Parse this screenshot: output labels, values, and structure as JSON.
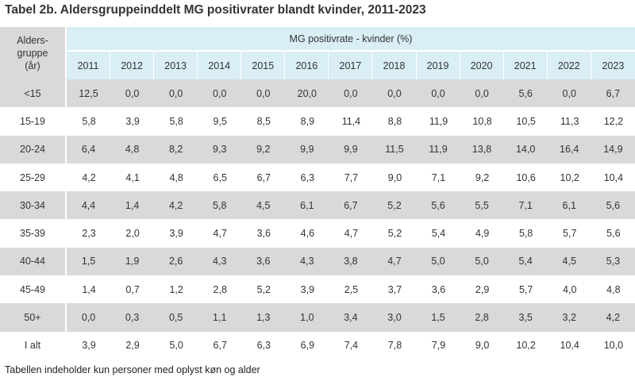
{
  "title": "Tabel 2b. Aldersgruppeinddelt MG positivrater blandt kvinder, 2011-2023",
  "header": {
    "row_header_lines": [
      "Alders-",
      "gruppe",
      "(år)"
    ],
    "span_label": "MG positivrate - kvinder (%)",
    "years": [
      "2011",
      "2012",
      "2013",
      "2014",
      "2015",
      "2016",
      "2017",
      "2018",
      "2019",
      "2020",
      "2021",
      "2022",
      "2023"
    ]
  },
  "rows": [
    {
      "label": "<15",
      "values": [
        "12,5",
        "0,0",
        "0,0",
        "0,0",
        "0,0",
        "20,0",
        "0,0",
        "0,0",
        "0,0",
        "0,0",
        "5,6",
        "0,0",
        "6,7"
      ]
    },
    {
      "label": "15-19",
      "values": [
        "5,8",
        "3,9",
        "5,8",
        "9,5",
        "8,5",
        "8,9",
        "11,4",
        "8,8",
        "11,9",
        "10,8",
        "10,5",
        "11,3",
        "12,2"
      ]
    },
    {
      "label": "20-24",
      "values": [
        "6,4",
        "4,8",
        "8,2",
        "9,3",
        "9,2",
        "9,9",
        "9,9",
        "11,5",
        "11,9",
        "13,8",
        "14,0",
        "16,4",
        "14,9"
      ]
    },
    {
      "label": "25-29",
      "values": [
        "4,2",
        "4,1",
        "4,8",
        "6,5",
        "6,7",
        "6,3",
        "7,7",
        "9,0",
        "7,1",
        "9,2",
        "10,6",
        "10,2",
        "10,4"
      ]
    },
    {
      "label": "30-34",
      "values": [
        "4,4",
        "1,4",
        "4,2",
        "5,8",
        "4,5",
        "6,1",
        "6,7",
        "5,2",
        "5,6",
        "5,5",
        "7,1",
        "6,1",
        "5,6"
      ]
    },
    {
      "label": "35-39",
      "values": [
        "2,3",
        "2,0",
        "3,9",
        "4,7",
        "3,6",
        "4,6",
        "4,7",
        "5,2",
        "5,4",
        "4,9",
        "5,8",
        "5,7",
        "5,6"
      ]
    },
    {
      "label": "40-44",
      "values": [
        "1,5",
        "1,9",
        "2,6",
        "4,3",
        "3,6",
        "4,3",
        "3,8",
        "4,7",
        "5,0",
        "5,0",
        "5,4",
        "4,5",
        "5,3"
      ]
    },
    {
      "label": "45-49",
      "values": [
        "1,4",
        "0,7",
        "1,2",
        "2,8",
        "5,2",
        "3,9",
        "2,5",
        "3,7",
        "3,6",
        "2,9",
        "5,7",
        "4,0",
        "4,8"
      ]
    },
    {
      "label": "50+",
      "values": [
        "0,0",
        "0,3",
        "0,5",
        "1,1",
        "1,3",
        "1,0",
        "3,4",
        "3,0",
        "1,5",
        "2,8",
        "3,5",
        "3,2",
        "4,2"
      ]
    },
    {
      "label": "I alt",
      "values": [
        "3,9",
        "2,9",
        "5,0",
        "6,7",
        "6,3",
        "6,9",
        "7,4",
        "7,8",
        "7,9",
        "9,0",
        "10,2",
        "10,4",
        "10,0"
      ]
    }
  ],
  "footnote": "Tabellen indeholder kun personer med oplyst køn og alder",
  "colors": {
    "header_blue": "#d9eef5",
    "row_gray": "#d9d9d9",
    "text": "#333333"
  }
}
